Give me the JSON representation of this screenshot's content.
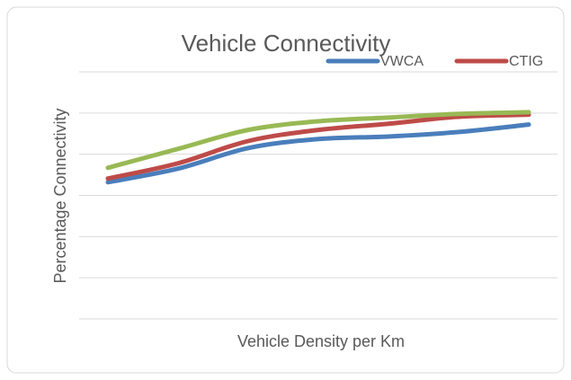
{
  "chart_data": {
    "type": "line",
    "title": "Vehicle Connectivity",
    "x_label": "Vehicle Density per Km",
    "y_label": "Percentage Connectivity",
    "categories": [
      null,
      null,
      null,
      null,
      null,
      null,
      null
    ],
    "series": [
      {
        "name": "VWCA",
        "color": "#4a7ebb",
        "values": [
          3.32,
          3.65,
          4.15,
          4.37,
          4.43,
          4.54,
          4.72
        ]
      },
      {
        "name": "CTIG",
        "color": "#be4b48",
        "values": [
          3.41,
          3.78,
          4.32,
          4.59,
          4.74,
          4.91,
          4.96
        ]
      },
      {
        "color": "#98b954",
        "values": [
          3.67,
          4.13,
          4.59,
          4.8,
          4.89,
          4.98,
          5.02
        ]
      }
    ],
    "ylim": [
      0,
      6
    ],
    "yticks": [
      0,
      1,
      2,
      3,
      4,
      5,
      6
    ],
    "grid": true,
    "smooth": true,
    "legend": "top-right"
  }
}
